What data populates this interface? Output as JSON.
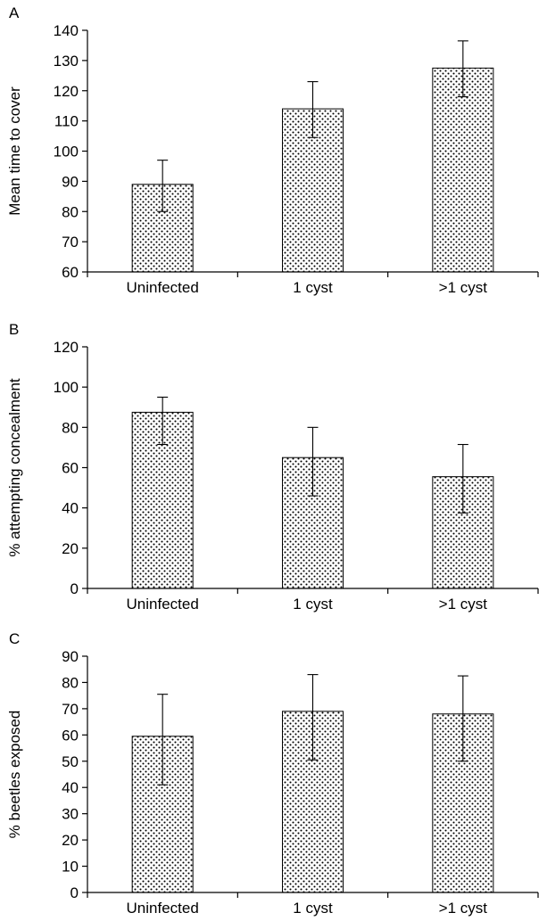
{
  "chart_data": [
    {
      "panel_label": "A",
      "type": "bar",
      "categories": [
        "Uninfected",
        "1 cyst",
        ">1 cyst"
      ],
      "values": [
        89,
        114,
        127.5
      ],
      "error_bars": [
        {
          "low": 80,
          "high": 97
        },
        {
          "low": 104.5,
          "high": 123
        },
        {
          "low": 118,
          "high": 136.5
        }
      ],
      "xlabel": "",
      "ylabel": "Mean time to cover",
      "ylim": [
        60,
        140
      ],
      "yticks": [
        60,
        70,
        80,
        90,
        100,
        110,
        120,
        130,
        140
      ],
      "bar_fill": "dotted-pattern",
      "grid": false
    },
    {
      "panel_label": "B",
      "type": "bar",
      "categories": [
        "Uninfected",
        "1 cyst",
        ">1 cyst"
      ],
      "values": [
        87.5,
        65,
        55.5
      ],
      "error_bars": [
        {
          "low": 71.5,
          "high": 95
        },
        {
          "low": 46,
          "high": 80
        },
        {
          "low": 37.5,
          "high": 71.5
        }
      ],
      "xlabel": "",
      "ylabel": "% attempting concealment",
      "ylim": [
        0,
        120
      ],
      "yticks": [
        0,
        20,
        40,
        60,
        80,
        100,
        120
      ],
      "bar_fill": "dotted-pattern",
      "grid": false
    },
    {
      "panel_label": "C",
      "type": "bar",
      "categories": [
        "Uninfected",
        "1 cyst",
        ">1 cyst"
      ],
      "values": [
        59.5,
        69,
        68
      ],
      "error_bars": [
        {
          "low": 41,
          "high": 75.5
        },
        {
          "low": 50.5,
          "high": 83
        },
        {
          "low": 50,
          "high": 82.5
        }
      ],
      "xlabel": "",
      "ylabel": "% beetles exposed",
      "ylim": [
        0,
        90
      ],
      "yticks": [
        0,
        10,
        20,
        30,
        40,
        50,
        60,
        70,
        80,
        90
      ],
      "bar_fill": "dotted-pattern",
      "grid": false
    }
  ],
  "colors": {
    "axis": "#000000",
    "bar_border": "#000000",
    "dot": "#000000",
    "background": "#ffffff"
  }
}
